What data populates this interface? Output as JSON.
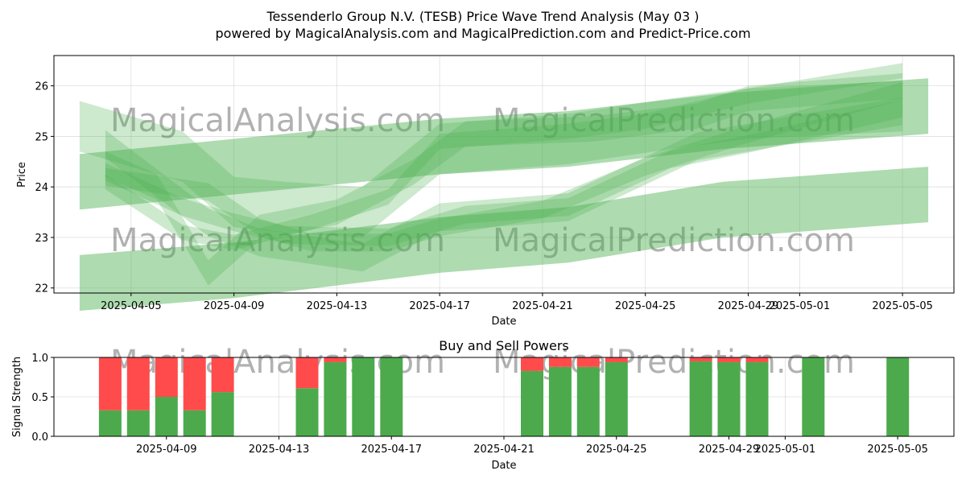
{
  "title": "Tessenderlo Group N.V. (TESB) Price Wave Trend Analysis (May 03 )",
  "subtitle": "powered by MagicalAnalysis.com and MagicalPrediction.com and Predict-Price.com",
  "watermarks": [
    "MagicalAnalysis.com",
    "MagicalPrediction.com"
  ],
  "colors": {
    "band": "#4caf50",
    "buy": "#4caa4c",
    "sell": "#ff4b4b"
  },
  "chart_data": [
    {
      "type": "area",
      "xlabel": "Date",
      "ylabel": "Price",
      "xlim": [
        "2025-04-02",
        "2025-05-07"
      ],
      "ylim": [
        21.9,
        26.6
      ],
      "yticks": [
        22,
        23,
        24,
        25,
        26
      ],
      "xticks": [
        "2025-04-05",
        "2025-04-09",
        "2025-04-13",
        "2025-04-17",
        "2025-04-21",
        "2025-04-25",
        "2025-04-29",
        "2025-05-01",
        "2025-05-05"
      ],
      "grid": true,
      "series": [
        {
          "x": [
            "2025-04-03",
            "2025-04-10",
            "2025-04-17",
            "2025-04-22",
            "2025-04-28",
            "2025-05-06"
          ],
          "y": [
            24.1,
            24.45,
            24.8,
            24.95,
            25.3,
            25.6
          ],
          "width": 1.1
        },
        {
          "x": [
            "2025-04-03",
            "2025-04-09",
            "2025-04-17",
            "2025-04-22",
            "2025-04-28",
            "2025-05-06"
          ],
          "y": [
            22.1,
            22.35,
            22.85,
            23.05,
            23.55,
            23.85
          ],
          "width": 1.1
        },
        {
          "x": [
            "2025-04-03",
            "2025-04-07",
            "2025-04-09",
            "2025-04-11",
            "2025-04-14",
            "2025-04-17",
            "2025-04-22",
            "2025-04-26",
            "2025-04-29",
            "2025-05-05"
          ],
          "y": [
            25.2,
            24.6,
            23.7,
            23.6,
            23.5,
            24.75,
            24.95,
            25.25,
            25.45,
            25.6
          ],
          "width": 1.0
        },
        {
          "x": [
            "2025-04-04",
            "2025-04-08",
            "2025-04-10",
            "2025-04-14",
            "2025-04-17",
            "2025-04-22",
            "2025-04-27",
            "2025-05-05"
          ],
          "y": [
            24.85,
            23.3,
            22.9,
            22.6,
            23.4,
            23.6,
            24.8,
            25.5
          ],
          "width": 0.55
        },
        {
          "x": [
            "2025-04-04",
            "2025-04-06",
            "2025-04-08",
            "2025-04-10",
            "2025-04-13",
            "2025-04-16",
            "2025-04-18",
            "2025-04-23",
            "2025-04-27",
            "2025-04-29",
            "2025-05-05"
          ],
          "y": [
            24.45,
            24.0,
            22.3,
            23.2,
            23.5,
            24.3,
            25.05,
            25.15,
            25.4,
            25.75,
            26.0
          ],
          "width": 0.5
        },
        {
          "x": [
            "2025-04-04",
            "2025-04-07",
            "2025-04-09",
            "2025-04-11",
            "2025-04-15",
            "2025-04-18",
            "2025-04-22",
            "2025-04-26",
            "2025-04-29",
            "2025-05-05"
          ],
          "y": [
            24.3,
            23.6,
            23.3,
            23.05,
            23.0,
            23.45,
            23.6,
            24.55,
            24.85,
            25.55
          ],
          "width": 0.35
        },
        {
          "x": [
            "2025-04-04",
            "2025-04-08",
            "2025-04-10",
            "2025-04-12",
            "2025-04-15",
            "2025-04-17",
            "2025-04-21",
            "2025-04-25",
            "2025-04-29",
            "2025-05-05"
          ],
          "y": [
            24.2,
            23.9,
            23.2,
            22.9,
            22.9,
            23.2,
            23.55,
            24.4,
            25.05,
            25.9
          ],
          "width": 0.35
        },
        {
          "x": [
            "2025-04-04",
            "2025-04-07",
            "2025-04-09",
            "2025-04-12",
            "2025-04-15",
            "2025-04-17",
            "2025-04-22",
            "2025-04-25",
            "2025-04-29",
            "2025-05-05"
          ],
          "y": [
            24.1,
            23.1,
            22.9,
            23.3,
            23.8,
            24.9,
            25.1,
            25.3,
            25.8,
            26.3
          ],
          "width": 0.3
        }
      ]
    },
    {
      "type": "bar",
      "title": "Buy and Sell Powers",
      "xlabel": "Date",
      "ylabel": "Signal Strength",
      "xlim": [
        "2025-04-05",
        "2025-05-07"
      ],
      "ylim": [
        0,
        1
      ],
      "yticks": [
        "0.0",
        "0.5",
        "1.0"
      ],
      "xticks": [
        "2025-04-09",
        "2025-04-13",
        "2025-04-17",
        "2025-04-21",
        "2025-04-25",
        "2025-04-29",
        "2025-05-01",
        "2025-05-05"
      ],
      "categories": [
        "2025-04-07",
        "2025-04-08",
        "2025-04-09",
        "2025-04-10",
        "2025-04-11",
        "2025-04-14",
        "2025-04-15",
        "2025-04-16",
        "2025-04-17",
        "2025-04-22",
        "2025-04-23",
        "2025-04-24",
        "2025-04-25",
        "2025-04-28",
        "2025-04-29",
        "2025-04-30",
        "2025-05-02",
        "2025-05-05"
      ],
      "series": [
        {
          "name": "Buy",
          "values": [
            0.33,
            0.33,
            0.5,
            0.33,
            0.56,
            0.61,
            0.94,
            1.0,
            1.0,
            0.83,
            0.88,
            0.88,
            0.94,
            0.95,
            0.94,
            0.94,
            1.0,
            1.0
          ]
        },
        {
          "name": "Sell",
          "values": [
            0.67,
            0.67,
            0.5,
            0.67,
            0.44,
            0.39,
            0.06,
            0.0,
            0.0,
            0.17,
            0.12,
            0.12,
            0.06,
            0.05,
            0.06,
            0.06,
            0.0,
            0.0
          ]
        }
      ]
    }
  ]
}
